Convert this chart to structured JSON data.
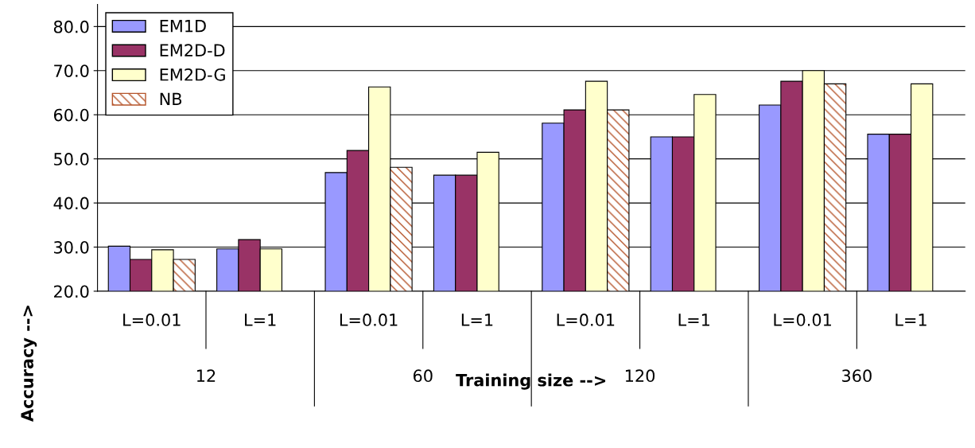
{
  "chart_data": {
    "type": "bar",
    "xlabel": "Training size -->",
    "ylabel": "Accuracy -->",
    "categories": [
      "L=0.01",
      "L=1",
      "L=0.01",
      "L=1",
      "L=0.01",
      "L=1",
      "L=0.01",
      "L=1"
    ],
    "series": [
      {
        "name": "EM1D",
        "color": "#9999ff",
        "values": [
          30.2,
          29.6,
          46.9,
          46.3,
          58.1,
          55.0,
          62.2,
          55.6
        ]
      },
      {
        "name": "EM2D-D",
        "color": "#993366",
        "values": [
          27.2,
          31.7,
          51.9,
          46.3,
          61.1,
          55.0,
          67.6,
          55.6
        ]
      },
      {
        "name": "EM2D-G",
        "color": "#ffffcc",
        "values": [
          29.4,
          29.6,
          66.3,
          51.5,
          67.6,
          64.6,
          70.0,
          67.0
        ]
      },
      {
        "name": "NB",
        "color": "#b5542a",
        "values": [
          27.2,
          null,
          48.1,
          null,
          61.1,
          null,
          67.0,
          null
        ]
      }
    ],
    "annotations": [
      "12",
      "60",
      "120",
      "360"
    ],
    "ylim": [
      20,
      85
    ],
    "yticks": [
      {
        "value": 20,
        "label": "20.0"
      },
      {
        "value": 30,
        "label": "30.0"
      },
      {
        "value": 40,
        "label": "40.0"
      },
      {
        "value": 50,
        "label": "50.0"
      },
      {
        "value": 60,
        "label": "60.0"
      },
      {
        "value": 70,
        "label": "70.0"
      },
      {
        "value": 80,
        "label": "80.0"
      }
    ],
    "grid": "y",
    "legend": "top left"
  }
}
